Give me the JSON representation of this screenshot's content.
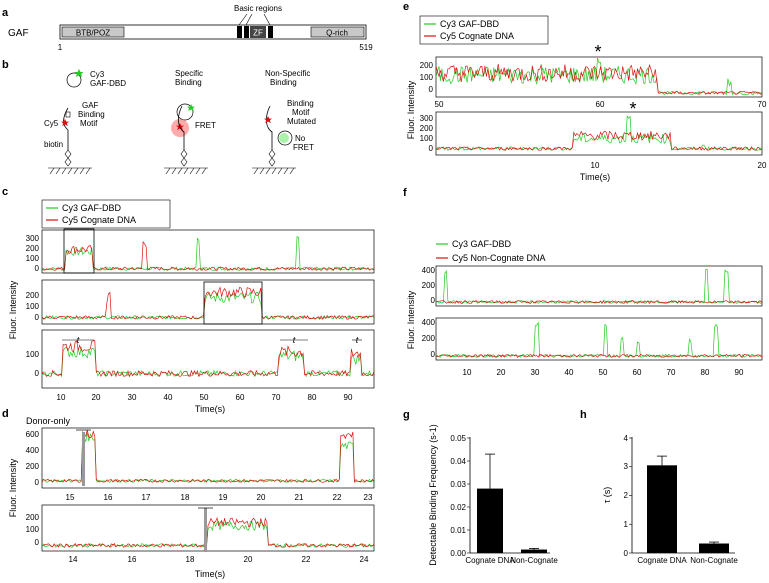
{
  "panel_letters": [
    "a",
    "b",
    "c",
    "d",
    "e",
    "f",
    "g",
    "h"
  ],
  "panel_a": {
    "protein_label": "GAF",
    "domains": {
      "btb": "BTB/POZ",
      "zf": "ZF",
      "qrich": "Q-rich"
    },
    "basic_regions_label": "Basic regions",
    "start": "1",
    "end": "519"
  },
  "panel_b": {
    "legend_line1": "Cy3",
    "legend_line2": "GAF-DBD",
    "motif_lines": [
      "GAF",
      "Binding",
      "Motif"
    ],
    "cy5_label": "Cy5",
    "biotin_label": "biotin",
    "specific_lines": [
      "Specific",
      "Binding"
    ],
    "fret_label": "FRET",
    "nonspecific_lines": [
      "Non-Specific",
      "Binding"
    ],
    "mutated_lines": [
      "Binding",
      "Motif",
      "Mutated"
    ],
    "nofret_lines": [
      "No",
      "FRET"
    ]
  },
  "panel_c": {
    "legend": [
      "Cy3 GAF-DBD",
      "Cy5 Cognate DNA"
    ],
    "ylabel": "Fluor. Intensity",
    "xlabel": "Time(s)",
    "xticks": [
      "10",
      "20",
      "30",
      "40",
      "50",
      "60",
      "70",
      "80",
      "90"
    ],
    "yticks_top": [
      "300",
      "200",
      "100",
      "0"
    ],
    "yticks_mid": [
      "200",
      "100",
      "0"
    ],
    "yticks_bot": [
      "100",
      "0"
    ],
    "t_label": "t"
  },
  "panel_d": {
    "donor_only": "Donor-only",
    "ylabel": "Fluor. Intensity",
    "xlabel": "Time(s)",
    "xticks_top": [
      "15",
      "16",
      "17",
      "18",
      "19",
      "20",
      "21",
      "22",
      "23"
    ],
    "xticks_bot": [
      "14",
      "16",
      "18",
      "20",
      "22",
      "24"
    ],
    "yticks_top": [
      "600",
      "400",
      "200",
      "0"
    ],
    "yticks_bot": [
      "200",
      "100",
      "0"
    ]
  },
  "panel_e": {
    "legend": [
      "Cy3 GAF-DBD",
      "Cy5 Cognate DNA"
    ],
    "ylabel": "Fluor. Intensity",
    "xlabel": "Time(s)",
    "xticks_top": [
      "50",
      "60",
      "70"
    ],
    "xticks_bot": [
      "10",
      "20"
    ],
    "yticks_top": [
      "200",
      "100",
      "0"
    ],
    "yticks_bot": [
      "300",
      "200",
      "100",
      "0"
    ],
    "star": "*"
  },
  "panel_f": {
    "legend": [
      "Cy3 GAF-DBD",
      "Cy5 Non-Cognate DNA"
    ],
    "ylabel": "Fluor. Intensity",
    "xticks": [
      "10",
      "20",
      "30",
      "40",
      "50",
      "60",
      "70",
      "80",
      "90"
    ],
    "yticks_top": [
      "400",
      "200",
      "0"
    ],
    "yticks_bot": [
      "400",
      "200",
      "0"
    ]
  },
  "colors": {
    "cy3": "#22cc22",
    "cy5": "#dd1111",
    "bar": "#000000",
    "box": "#c8c8c8"
  },
  "chart_data": [
    {
      "type": "bar",
      "panel": "g",
      "categories": [
        "Cognate DNA",
        "Non-Cognate"
      ],
      "values": [
        0.028,
        0.0015
      ],
      "errors": [
        0.015,
        0.0005
      ],
      "ylabel": "Detectable Binding Frequency (s-1)",
      "ylim": [
        0,
        0.05
      ],
      "yticks": [
        "0.00",
        "0.01",
        "0.02",
        "0.03",
        "0.04",
        "0.05"
      ]
    },
    {
      "type": "bar",
      "panel": "h",
      "categories": [
        "Cognate DNA",
        "Non-Cognate"
      ],
      "values": [
        3.05,
        0.33
      ],
      "errors": [
        0.32,
        0.05
      ],
      "ylabel": "τ (s)",
      "ylim": [
        0,
        4
      ],
      "yticks": [
        "0",
        "1",
        "2",
        "3",
        "4"
      ]
    }
  ]
}
